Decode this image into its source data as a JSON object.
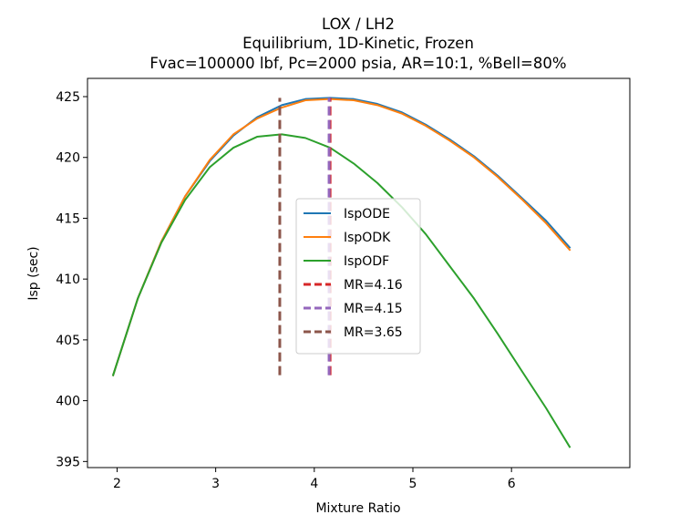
{
  "chart_data": {
    "type": "line",
    "title_lines": [
      "LOX / LH2",
      "Equilibrium, 1D-Kinetic, Frozen",
      "Fvac=100000 lbf, Pc=2000 psia, AR=10:1, %Bell=80%"
    ],
    "xlabel": "Mixture Ratio",
    "ylabel": "Isp (sec)",
    "xlim": [
      1.7,
      7.2
    ],
    "ylim": [
      394.5,
      426.5
    ],
    "xticks": [
      2,
      3,
      4,
      5,
      6
    ],
    "yticks": [
      395,
      400,
      405,
      410,
      415,
      420,
      425
    ],
    "legend_position": "center",
    "x": [
      1.96,
      2.21,
      2.45,
      2.69,
      2.94,
      3.18,
      3.42,
      3.67,
      3.91,
      4.16,
      4.4,
      4.64,
      4.89,
      5.13,
      5.37,
      5.62,
      5.86,
      6.1,
      6.35,
      6.59
    ],
    "series": [
      {
        "name": "IspODE",
        "color": "#1f77b4",
        "values": [
          402.1,
          408.4,
          413.1,
          416.8,
          419.7,
          421.8,
          423.3,
          424.3,
          424.8,
          424.9,
          424.8,
          424.4,
          423.7,
          422.7,
          421.5,
          420.1,
          418.5,
          416.7,
          414.8,
          412.6
        ]
      },
      {
        "name": "IspODK",
        "color": "#ff7f0e",
        "values": [
          402.1,
          408.4,
          413.1,
          416.8,
          419.8,
          421.9,
          423.2,
          424.1,
          424.7,
          424.8,
          424.7,
          424.3,
          423.6,
          422.6,
          421.4,
          420.0,
          418.4,
          416.6,
          414.6,
          412.4
        ]
      },
      {
        "name": "IspODF",
        "color": "#2ca02c",
        "values": [
          402.1,
          408.4,
          413.0,
          416.5,
          419.2,
          420.8,
          421.7,
          421.9,
          421.6,
          420.8,
          419.5,
          417.9,
          415.9,
          413.7,
          411.1,
          408.4,
          405.5,
          402.5,
          399.4,
          396.2
        ]
      }
    ],
    "vlines": [
      {
        "name": "MR=4.16",
        "x": 4.16,
        "ymin": 402.1,
        "ymax": 424.9,
        "color": "#d62728"
      },
      {
        "name": "MR=4.15",
        "x": 4.15,
        "ymin": 402.1,
        "ymax": 424.9,
        "color": "#9467bd"
      },
      {
        "name": "MR=3.65",
        "x": 3.65,
        "ymin": 402.1,
        "ymax": 424.9,
        "color": "#8c564b"
      }
    ]
  }
}
